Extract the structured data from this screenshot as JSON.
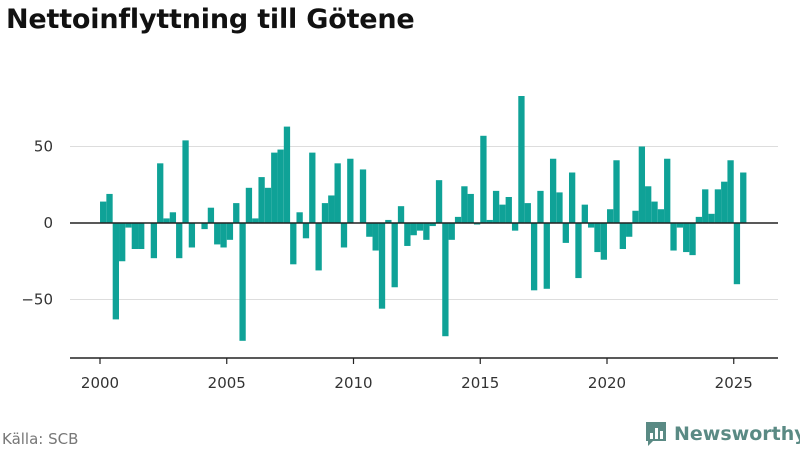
{
  "chart_data": {
    "type": "bar",
    "title": "Nettoinflyttning till Götene",
    "source": "Källa: SCB",
    "brand": "Newsworthy",
    "bar_color": "#0fa297",
    "grid": true,
    "ylim": [
      -88,
      95
    ],
    "xlim": [
      1999.2,
      2026.85
    ],
    "yticks": [
      50,
      0,
      -50
    ],
    "yticklabels": [
      "50",
      "0",
      "−50"
    ],
    "xticks": [
      2000,
      2005,
      2010,
      2015,
      2020,
      2025
    ],
    "xticklabels": [
      "2000",
      "2005",
      "2010",
      "2015",
      "2020",
      "2025"
    ],
    "series": [
      {
        "x": [
          2000.125,
          2000.375,
          2000.625,
          2000.875,
          2001.125,
          2001.375,
          2001.625,
          2001.875,
          2002.125,
          2002.375,
          2002.625,
          2002.875,
          2003.125,
          2003.375,
          2003.625,
          2003.875,
          2004.125,
          2004.375,
          2004.625,
          2004.875,
          2005.125,
          2005.375,
          2005.625,
          2005.875,
          2006.125,
          2006.375,
          2006.625,
          2006.875,
          2007.125,
          2007.375,
          2007.625,
          2007.875,
          2008.125,
          2008.375,
          2008.625,
          2008.875,
          2009.125,
          2009.375,
          2009.625,
          2009.875,
          2010.125,
          2010.375,
          2010.625,
          2010.875,
          2011.125,
          2011.375,
          2011.625,
          2011.875,
          2012.125,
          2012.375,
          2012.625,
          2012.875,
          2013.125,
          2013.375,
          2013.625,
          2013.875,
          2014.125,
          2014.375,
          2014.625,
          2014.875,
          2015.125,
          2015.375,
          2015.625,
          2015.875,
          2016.125,
          2016.375,
          2016.625,
          2016.875,
          2017.125,
          2017.375,
          2017.625,
          2017.875,
          2018.125,
          2018.375,
          2018.625,
          2018.875,
          2019.125,
          2019.375,
          2019.625,
          2019.875,
          2020.125,
          2020.375,
          2020.625,
          2020.875,
          2021.125,
          2021.375,
          2021.625,
          2021.875,
          2022.125,
          2022.375,
          2022.625,
          2022.875,
          2023.125,
          2023.375,
          2023.625,
          2023.875,
          2024.125,
          2024.375,
          2024.625,
          2024.875,
          2025.125,
          2025.375
        ],
        "values": [
          14,
          19,
          -63,
          -25,
          -3,
          -17,
          -17,
          0,
          -23,
          39,
          3,
          7,
          -23,
          54,
          -16,
          0,
          -4,
          10,
          -14,
          -16,
          -11,
          13,
          -77,
          23,
          3,
          30,
          23,
          46,
          48,
          63,
          -27,
          7,
          -10,
          46,
          -31,
          13,
          18,
          39,
          -16,
          42,
          0,
          35,
          -9,
          -18,
          -56,
          2,
          -42,
          11,
          -15,
          -8,
          -5,
          -11,
          -2,
          28,
          -74,
          -11,
          4,
          24,
          19,
          -1,
          57,
          2,
          21,
          12,
          17,
          -5,
          83,
          13,
          -44,
          21,
          -43,
          42,
          20,
          -13,
          33,
          -36,
          12,
          -3,
          -19,
          -24,
          9,
          41,
          -17,
          -9,
          8,
          50,
          24,
          14,
          9,
          42,
          -18,
          -3,
          -19,
          -21,
          4,
          22,
          6,
          22,
          27,
          41,
          -40,
          33
        ]
      }
    ]
  }
}
